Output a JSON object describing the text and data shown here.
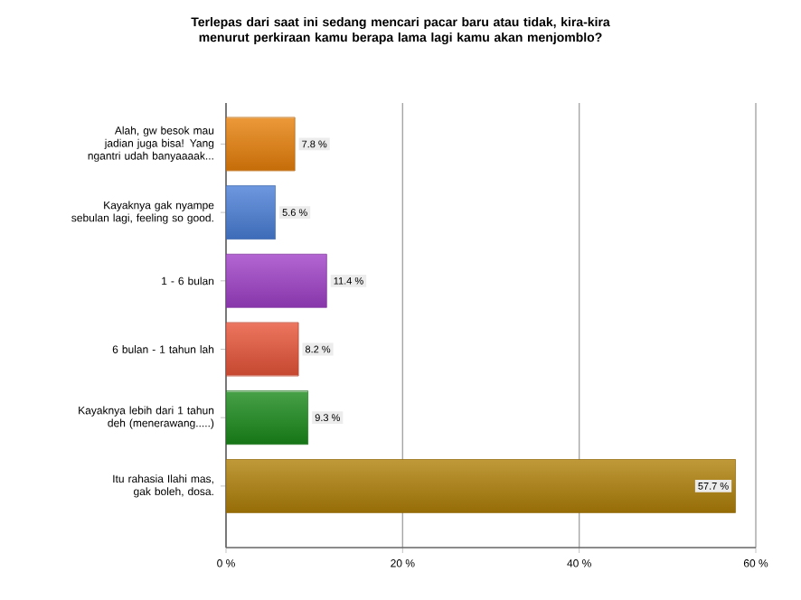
{
  "chart_data": {
    "type": "bar",
    "orientation": "horizontal",
    "title": "Terlepas dari saat ini sedang mencari pacar baru atau tidak, kira-kira menurut perkiraan kamu berapa lama lagi kamu akan menjomblo?",
    "categories": [
      "Alah, gw besok mau jadian juga bisa! Yang ngantri udah banyaaaak...",
      "Kayaknya gak nyampe sebulan lagi, feeling so good.",
      "1 - 6 bulan",
      "6 bulan - 1 tahun lah",
      "Kayaknya lebih dari 1 tahun deh (menerawang.....)",
      "Itu rahasia Ilahi mas, gak boleh, dosa."
    ],
    "values": [
      7.8,
      5.6,
      11.4,
      8.2,
      9.3,
      57.7
    ],
    "colors": [
      "#e8800a",
      "#4a7fd8",
      "#a040c8",
      "#e85438",
      "#1a8a1a",
      "#b08008"
    ],
    "value_labels": [
      "7.8 %",
      "5.6 %",
      "11.4 %",
      "8.2 %",
      "9.3 %",
      "57.7 %"
    ],
    "xlim": [
      0,
      60
    ],
    "xticks": [
      {
        "value": 0,
        "label": "0 %"
      },
      {
        "value": 20,
        "label": "20 %"
      },
      {
        "value": 40,
        "label": "40 %"
      },
      {
        "value": 60,
        "label": "60 %"
      }
    ],
    "grid": "x"
  }
}
